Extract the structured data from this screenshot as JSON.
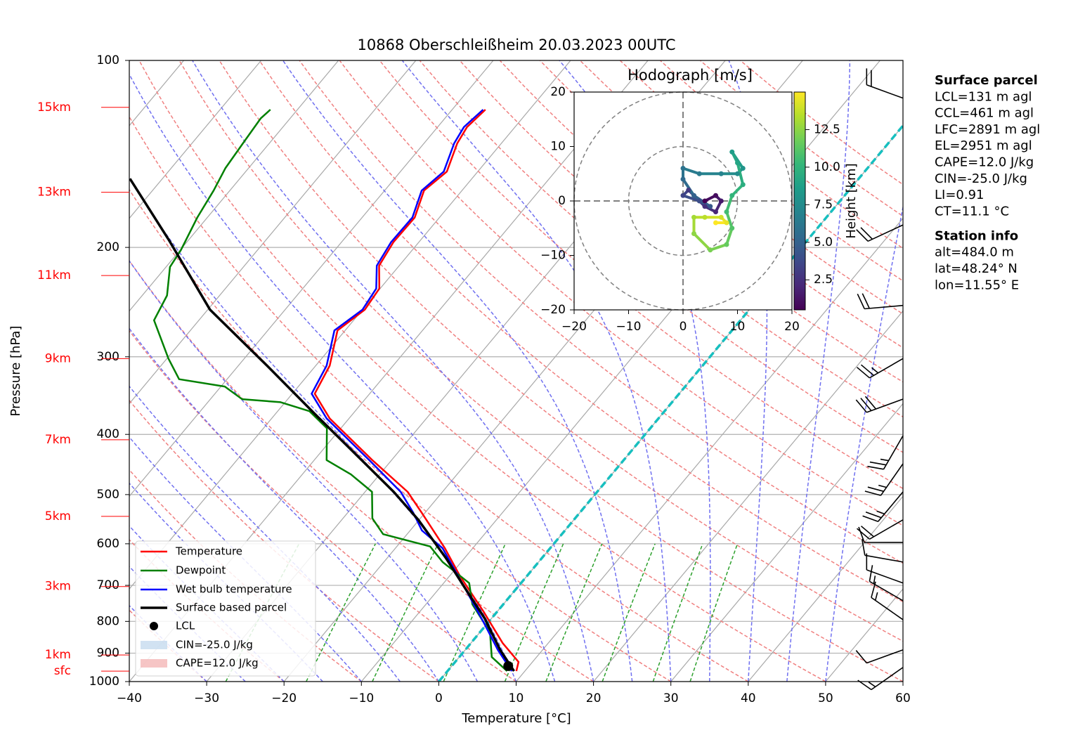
{
  "chart_data": [
    {
      "type": "skewt",
      "title": "10868 Oberschleißheim 20.03.2023 00UTC",
      "xlabel": "Temperature [°C]",
      "ylabel": "Pressure [hPa]",
      "xlim": [
        -40,
        60
      ],
      "xticks": [
        {
          "value": -40,
          "label": "−40"
        },
        {
          "value": -30,
          "label": "−30"
        },
        {
          "value": -20,
          "label": "−20"
        },
        {
          "value": -10,
          "label": "−10"
        },
        0,
        10,
        20,
        30,
        40,
        50,
        60
      ],
      "ylim": [
        1000,
        100
      ],
      "yticks": [
        100,
        200,
        300,
        400,
        500,
        600,
        700,
        800,
        900,
        1000
      ],
      "log_scale": "y",
      "grid": true,
      "freezing_isotherm": 0,
      "series": [
        {
          "name": "Temperature",
          "color": "#ff0000",
          "pressure": [
            962,
            930,
            867,
            771,
            677,
            610,
            535,
            495,
            440,
            377,
            344,
            310,
            272,
            252,
            233,
            214,
            196,
            179,
            162,
            151,
            136,
            128,
            120
          ],
          "values": [
            8.9,
            8.2,
            4.1,
            -1.8,
            -8.6,
            -13.6,
            -20.4,
            -24.5,
            -32.5,
            -42.5,
            -47.1,
            -48.2,
            -51.0,
            -49.7,
            -50.1,
            -52.6,
            -53.3,
            -53.2,
            -54.9,
            -54.0,
            -55.7,
            -56.2,
            -55.7
          ]
        },
        {
          "name": "Dewpoint",
          "color": "#008000",
          "pressure": [
            962,
            913,
            833,
            751,
            694,
            642,
            606,
            579,
            546,
            495,
            464,
            440,
            391,
            367,
            355,
            351,
            335,
            326,
            302,
            262,
            239,
            215,
            202,
            179,
            162,
            149,
            136,
            124,
            120
          ],
          "values": [
            7.7,
            4.2,
            1.3,
            -4.0,
            -6.7,
            -12.4,
            -15.7,
            -23.1,
            -26.2,
            -29.1,
            -33.7,
            -38.4,
            -41.8,
            -45.9,
            -50.6,
            -55.9,
            -59.5,
            -66.2,
            -69.8,
            -75.8,
            -76.8,
            -79.5,
            -79.9,
            -81.3,
            -82.1,
            -83.0,
            -83.4,
            -83.8,
            -83.5
          ]
        },
        {
          "name": "Wet bulb temperature",
          "color": "#0000ff",
          "pressure": [
            962,
            889,
            801,
            703,
            610,
            571,
            535,
            495,
            440,
            377,
            344,
            310,
            272,
            252,
            233,
            214,
            196,
            179,
            162,
            151,
            136,
            128,
            120
          ],
          "values": [
            8.3,
            4.2,
            -0.7,
            -7.0,
            -13.9,
            -18.5,
            -21.5,
            -25.4,
            -32.9,
            -42.9,
            -47.5,
            -48.6,
            -51.4,
            -50.0,
            -50.5,
            -52.9,
            -53.6,
            -53.5,
            -55.2,
            -54.4,
            -56.1,
            -56.6,
            -56.0
          ]
        },
        {
          "name": "Surface based parcel",
          "color": "#000000",
          "pressure": [
            962,
            889,
            791,
            703,
            634,
            549,
            495,
            446,
            372,
            310,
            252,
            194,
            155
          ],
          "values": [
            8.6,
            4.5,
            -0.9,
            -7.0,
            -12.3,
            -20.1,
            -26.3,
            -33.0,
            -44.7,
            -56.3,
            -69.7,
            -82.7,
            -94.2
          ]
        }
      ],
      "lcl": {
        "name": "LCL",
        "pressure": 944,
        "value": 7.3
      },
      "cin_label": "CIN=-25.0 J/kg",
      "cape_label": "CAPE=12.0 J/kg",
      "height_labels": [
        {
          "label": "15km",
          "pressure": 119
        },
        {
          "label": "13km",
          "pressure": 163
        },
        {
          "label": "11km",
          "pressure": 222
        },
        {
          "label": "9km",
          "pressure": 302
        },
        {
          "label": "7km",
          "pressure": 408
        },
        {
          "label": "5km",
          "pressure": 542
        },
        {
          "label": "3km",
          "pressure": 703
        },
        {
          "label": "1km",
          "pressure": 906
        },
        {
          "label": "sfc",
          "pressure": 962
        }
      ],
      "wind": {
        "pressure": [
          949,
          889,
          795,
          741,
          694,
          642,
          597,
          549,
          495,
          446,
          402,
          351,
          302,
          248,
          184,
          115
        ],
        "speed": [
          15,
          10,
          15,
          15,
          10,
          10,
          10,
          20,
          25,
          25,
          25,
          30,
          25,
          20,
          20,
          20
        ],
        "direction": [
          235,
          250,
          305,
          300,
          290,
          280,
          270,
          240,
          220,
          215,
          210,
          250,
          240,
          265,
          245,
          290
        ]
      }
    },
    {
      "type": "hodograph",
      "title": "Hodograph [m/s]",
      "colorbar_label": "Height [km]",
      "xlim": [
        -20,
        20
      ],
      "ylim": [
        -20,
        20
      ],
      "xticks": [
        {
          "value": -20,
          "label": "−20"
        },
        {
          "value": -10,
          "label": "−10"
        },
        0,
        10,
        20
      ],
      "yticks": [
        {
          "value": -20,
          "label": "−20"
        },
        {
          "value": -10,
          "label": "−10"
        },
        0,
        10,
        20
      ],
      "rings": [
        10,
        20
      ],
      "clim": [
        0.5,
        15
      ],
      "cticks": [
        2.5,
        {
          "value": 5,
          "label": "5.0"
        },
        7.5,
        {
          "value": 10,
          "label": "10.0"
        },
        12.5
      ],
      "height": [
        0.5,
        1,
        1.5,
        2,
        2.5,
        3,
        3.5,
        4,
        4.5,
        5,
        5.5,
        6,
        6.5,
        7,
        7.5,
        8,
        8.5,
        9,
        9.5,
        10,
        10.5,
        11,
        11.5,
        12,
        12.5,
        13,
        13.5,
        14,
        14.5,
        15
      ],
      "u": [
        4,
        6,
        7,
        6,
        4,
        1,
        0,
        3,
        5,
        2,
        0,
        0,
        3,
        7,
        10,
        11,
        9,
        10,
        11,
        9,
        8,
        9,
        8,
        5,
        2,
        2,
        4,
        7,
        8,
        6
      ],
      "v": [
        0,
        1,
        0,
        -2,
        -1,
        2,
        1,
        0,
        -1,
        1,
        4,
        6,
        5,
        5,
        5,
        6,
        9,
        7,
        3,
        1,
        -2,
        -5,
        -8,
        -9,
        -6,
        -3,
        -3,
        -3,
        -4,
        -4
      ]
    }
  ],
  "info": {
    "surface_parcel": {
      "title": "Surface parcel",
      "lines": [
        "LCL=131 m agl",
        "CCL=461 m agl",
        "LFC=2891 m agl",
        "EL=2951 m agl",
        "CAPE=12.0 J/kg",
        "CIN=-25.0 J/kg",
        "LI=0.91",
        "CT=11.1 °C"
      ]
    },
    "station_info": {
      "title": "Station info",
      "lines": [
        "alt=484.0 m",
        "lat=48.24° N",
        "lon=11.55° E"
      ]
    }
  }
}
